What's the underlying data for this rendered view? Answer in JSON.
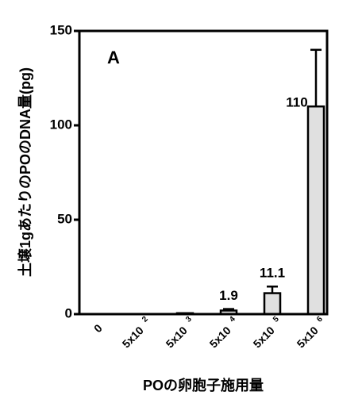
{
  "chart_data": {
    "type": "bar",
    "annotation": "A",
    "y_label": "土壌1gあたりのPOのDNA量(pg)",
    "x_label": "POの卵胞子施用量",
    "categories": [
      "0",
      "5x10",
      "5x10",
      "5x10",
      "5x10",
      "5x10"
    ],
    "category_exponents": [
      null,
      "2",
      "3",
      "4",
      "5",
      "6"
    ],
    "values": [
      0,
      0,
      0.5,
      1.9,
      11.1,
      110
    ],
    "errors": [
      null,
      null,
      null,
      0.8,
      3.5,
      30
    ],
    "value_labels": [
      null,
      null,
      null,
      "1.9",
      "11.1",
      "110"
    ],
    "color": "#e0e0e0",
    "ylim": [
      0,
      150
    ],
    "yticks": [
      0,
      50,
      100,
      150
    ]
  }
}
